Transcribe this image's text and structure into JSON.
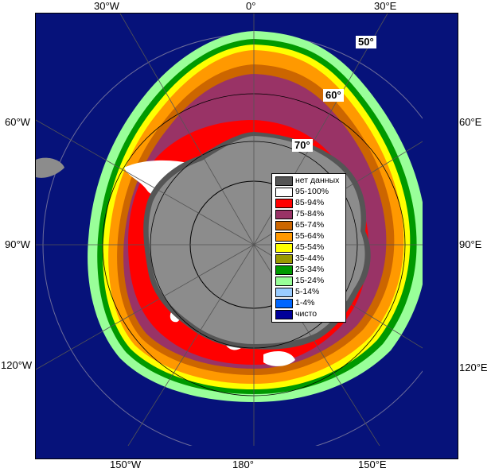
{
  "lon_labels": {
    "top_left": "30°W",
    "top_center": "0°",
    "top_right": "30°E",
    "left_upper": "60°W",
    "left_mid": "90°W",
    "left_lower": "120°W",
    "right_upper": "60°E",
    "right_mid": "90°E",
    "right_lower": "120°E",
    "bottom_left": "150°W",
    "bottom_center": "180°",
    "bottom_right": "150°E"
  },
  "lat_labels": {
    "lat50": "50°",
    "lat60": "60°",
    "lat70": "70°"
  },
  "legend": [
    {
      "label": "нет данных",
      "color": "#555555"
    },
    {
      "label": "95-100%",
      "color": "#ffffff"
    },
    {
      "label": "85-94%",
      "color": "#ff0000"
    },
    {
      "label": "75-84%",
      "color": "#993366"
    },
    {
      "label": "65-74%",
      "color": "#cc6600"
    },
    {
      "label": "55-64%",
      "color": "#ff9900"
    },
    {
      "label": "45-54%",
      "color": "#ffff00"
    },
    {
      "label": "35-44%",
      "color": "#999900"
    },
    {
      "label": "25-34%",
      "color": "#009900"
    },
    {
      "label": "15-24%",
      "color": "#99ff99"
    },
    {
      "label": "5-14%",
      "color": "#99ccff"
    },
    {
      "label": "1-4%",
      "color": "#0066ff"
    },
    {
      "label": "чисто",
      "color": "#000099"
    }
  ],
  "colors": {
    "ocean": "#06127a",
    "land": "#8c8c8c",
    "pole_cap": "#8c8c8c",
    "no_data": "#555555"
  }
}
